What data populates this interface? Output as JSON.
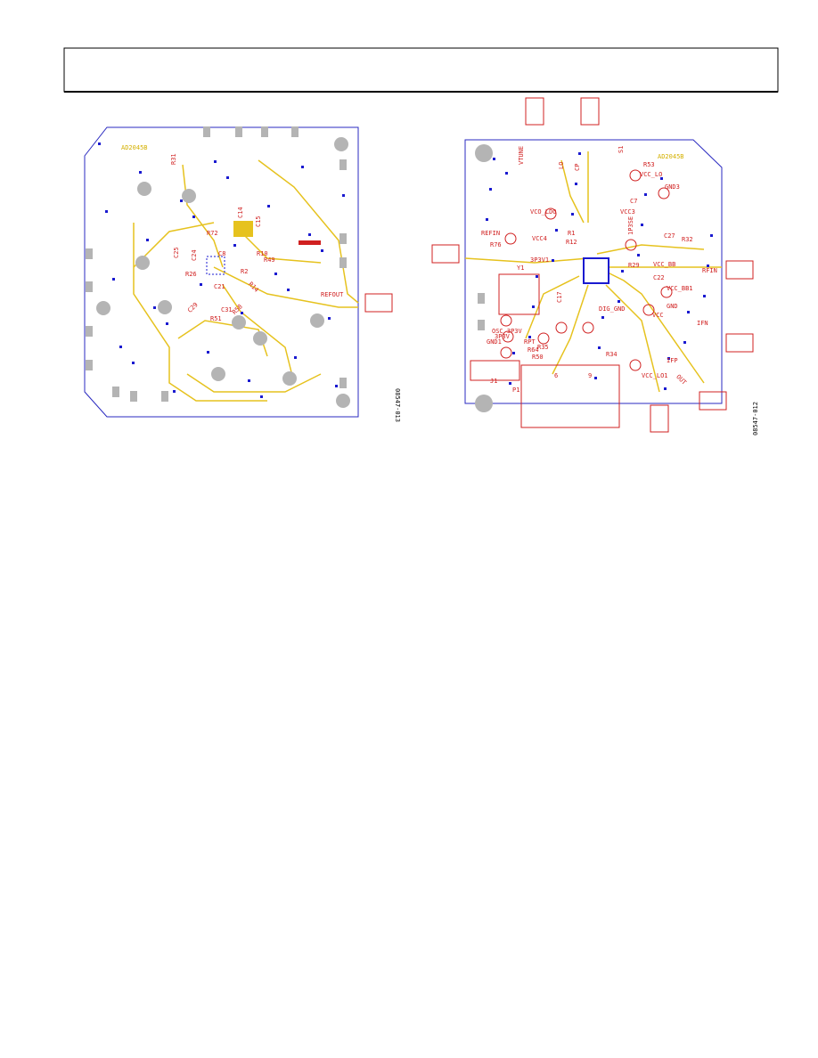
{
  "left_board": {
    "name": "AD2045B",
    "figure_id": "08547-013",
    "labels": [
      "R31",
      "C14",
      "C15",
      "R72",
      "R10",
      "R49",
      "C25",
      "C24",
      "C8",
      "R26",
      "C21",
      "R2",
      "R14",
      "C29",
      "R51",
      "C31",
      "R58",
      "REFOUT"
    ]
  },
  "right_board": {
    "name": "AD2045B",
    "figure_id": "08547-012",
    "labels": [
      "VTUNE",
      "CP",
      "LO",
      "S1",
      "R53",
      "VCC_LO",
      "C7",
      "GND3",
      "VCC3",
      "VCO_LDO",
      "R1",
      "VCC4",
      "REFIN",
      "R76",
      "R12",
      "1P3SE",
      "C27",
      "R32",
      "3P3V1",
      "R29",
      "VCC_BB",
      "RFIN",
      "Y1",
      "C22",
      "VCC_BB1",
      "C17",
      "GND",
      "DIG_GND",
      "VCC",
      "IFN",
      "OSC_3P3V",
      "3P3V",
      "GND1",
      "R35",
      "RPT",
      "R64",
      "R50",
      "R34",
      "IFP",
      "VCC_LO1",
      "OUT",
      "J1",
      "P1",
      "6",
      "9"
    ]
  }
}
